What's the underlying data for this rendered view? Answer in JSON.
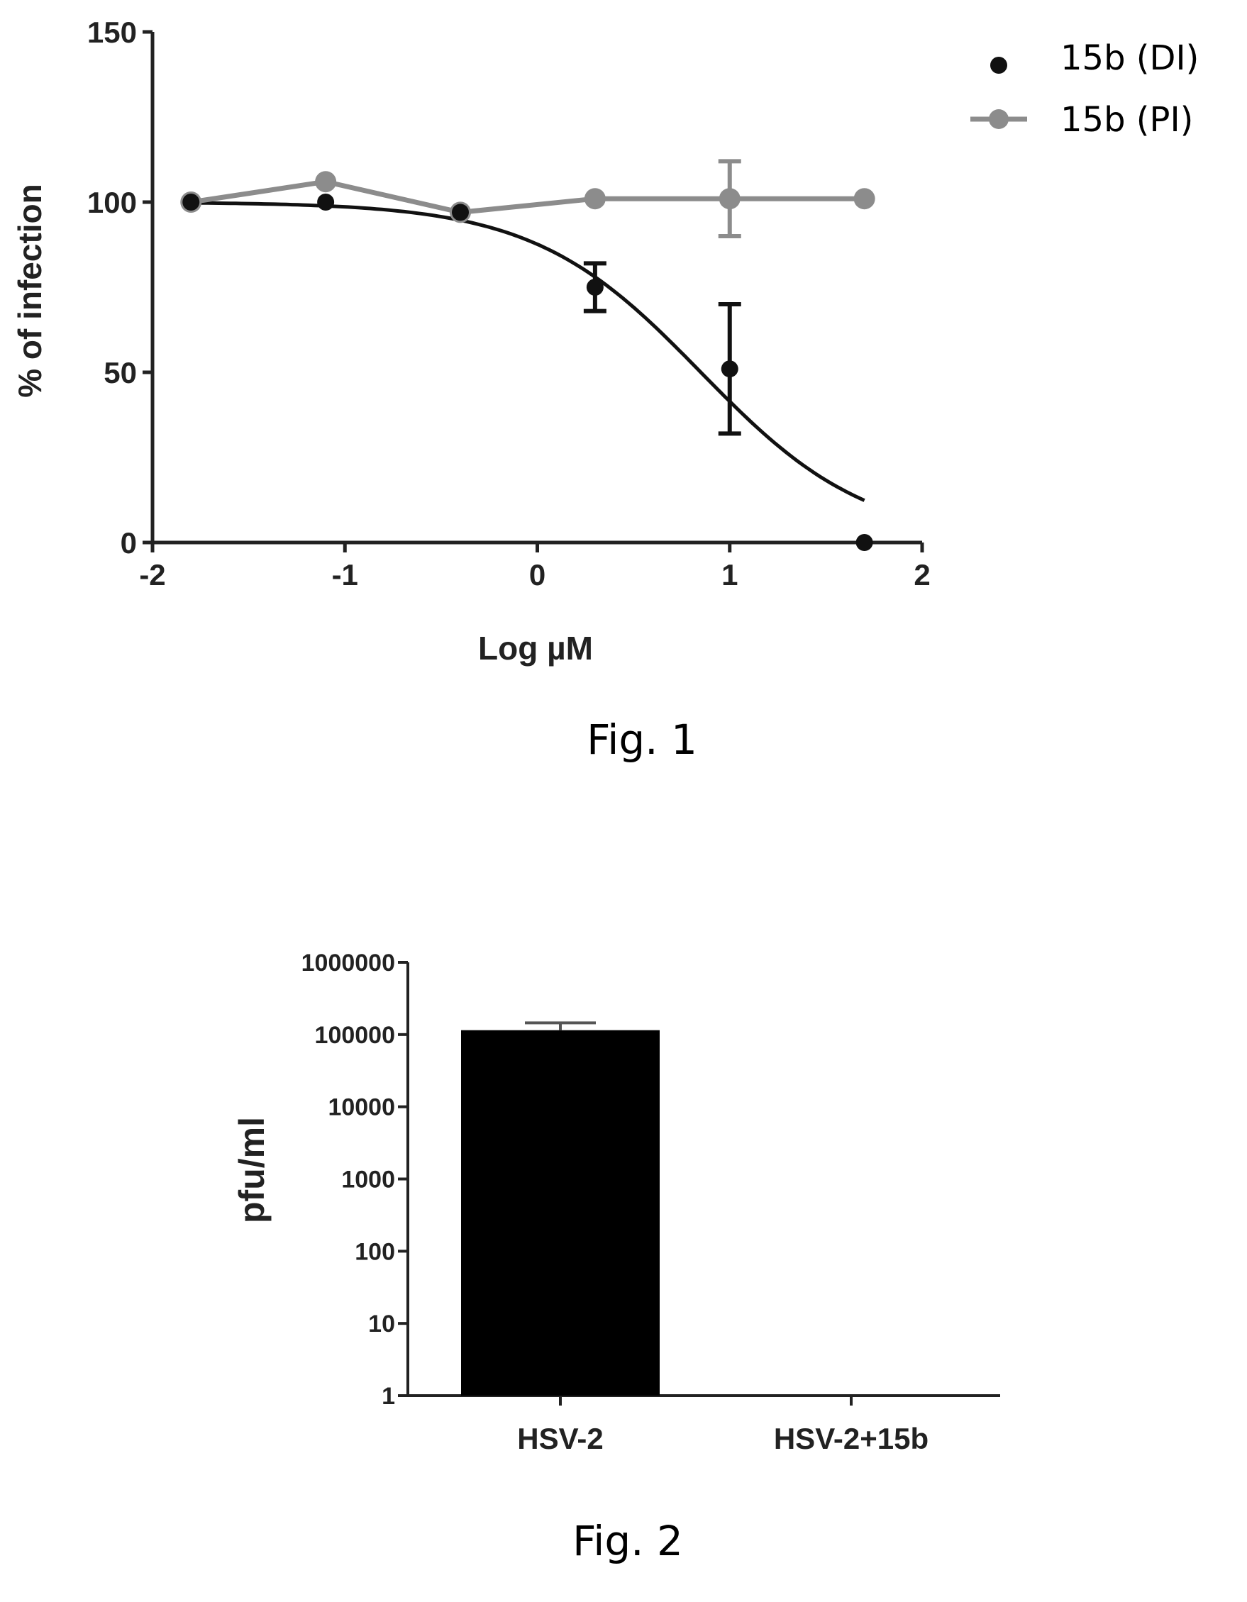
{
  "chart_data": [
    {
      "type": "scatter",
      "caption": "Fig. 1",
      "xlabel": "Log µM",
      "ylabel": "% of infection",
      "xlim": [
        -2,
        2
      ],
      "ylim": [
        0,
        150
      ],
      "x_ticks": [
        -2,
        -1,
        0,
        1,
        2
      ],
      "y_ticks": [
        0,
        50,
        100,
        150
      ],
      "x_tick_labels": [
        "-2",
        "-1",
        "0",
        "1",
        "2"
      ],
      "y_tick_labels": [
        "0",
        "50",
        "100",
        "150"
      ],
      "legend_position": "top-right",
      "series": [
        {
          "name": "15b (DI)",
          "color": "#111111",
          "marker": "circle",
          "line": "fitted-sigmoid",
          "points": [
            {
              "x": -1.8,
              "y": 100,
              "err": 0
            },
            {
              "x": -1.1,
              "y": 100,
              "err": 0
            },
            {
              "x": -0.4,
              "y": 97,
              "err": 0
            },
            {
              "x": 0.3,
              "y": 75,
              "err": 7
            },
            {
              "x": 1.0,
              "y": 51,
              "err": 19
            },
            {
              "x": 1.7,
              "y": 0,
              "err": 0
            }
          ],
          "fit": {
            "top": 100,
            "bottom": 0,
            "logIC50": 0.85,
            "hill": 1.0,
            "x_range": [
              -1.8,
              1.7
            ]
          }
        },
        {
          "name": "15b (PI)",
          "color": "#8c8c8c",
          "marker": "circle",
          "line": "connected",
          "points": [
            {
              "x": -1.8,
              "y": 100,
              "err": 0
            },
            {
              "x": -1.1,
              "y": 106,
              "err": 0
            },
            {
              "x": -0.4,
              "y": 97,
              "err": 0
            },
            {
              "x": 0.3,
              "y": 101,
              "err": 0
            },
            {
              "x": 1.0,
              "y": 101,
              "err": 11
            },
            {
              "x": 1.7,
              "y": 101,
              "err": 0
            }
          ]
        }
      ]
    },
    {
      "type": "bar",
      "caption": "Fig. 2",
      "ylabel": "pfu/ml",
      "yscale": "log",
      "ylim": [
        1,
        1000000
      ],
      "y_ticks": [
        1,
        10,
        100,
        1000,
        10000,
        100000,
        1000000
      ],
      "y_tick_labels": [
        "1",
        "10",
        "100",
        "1000",
        "10000",
        "100000",
        "1000000"
      ],
      "categories": [
        "HSV-2",
        "HSV-2+15b"
      ],
      "values": [
        115000,
        1
      ],
      "errors": [
        30000,
        0
      ],
      "bar_color": "#000000"
    }
  ]
}
